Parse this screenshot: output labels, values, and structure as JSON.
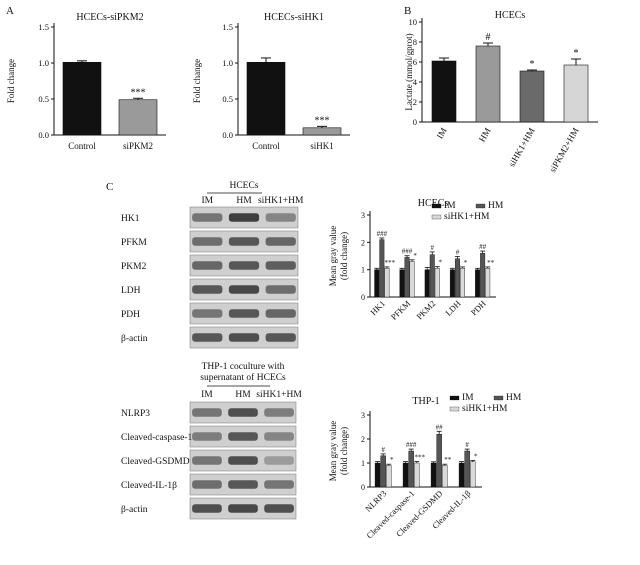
{
  "panels": {
    "A": "A",
    "B": "B",
    "C": "C"
  },
  "colors": {
    "black_bar": "#111111",
    "gray_bar": "#9a9a9a",
    "light_bar": "#d6d6d6"
  },
  "chart_data": [
    {
      "id": "a1",
      "type": "bar",
      "title": "HCECs-siPKM2",
      "ylabel": "Fold change",
      "categories": [
        "Control",
        "siPKM2"
      ],
      "values": [
        1.01,
        0.49
      ],
      "errors": [
        0.02,
        0.02
      ],
      "significance": [
        "",
        "***"
      ],
      "ylim": [
        0,
        1.5
      ],
      "yticks": [
        "0.0",
        "0.5",
        "1.0",
        "1.5"
      ],
      "bar_colors": [
        "#111111",
        "#9a9a9a"
      ]
    },
    {
      "id": "a2",
      "type": "bar",
      "title": "HCECs-siHK1",
      "ylabel": "Fold change",
      "categories": [
        "Control",
        "siHK1"
      ],
      "values": [
        1.01,
        0.1
      ],
      "errors": [
        0.06,
        0.02
      ],
      "significance": [
        "",
        "***"
      ],
      "ylim": [
        0,
        1.5
      ],
      "yticks": [
        "0.0",
        "0.5",
        "1.0",
        "1.5"
      ],
      "bar_colors": [
        "#111111",
        "#9a9a9a"
      ]
    },
    {
      "id": "b",
      "type": "bar",
      "title": "HCECs",
      "ylabel": "Lactate (mmol/gprot)",
      "categories": [
        "IM",
        "HM",
        "siHK1+HM",
        "siPKM2+HM"
      ],
      "values": [
        6.1,
        7.6,
        5.1,
        5.7
      ],
      "errors": [
        0.3,
        0.3,
        0.1,
        0.6
      ],
      "significance": [
        "",
        "#",
        "*",
        "*"
      ],
      "ylim": [
        0,
        10
      ],
      "yticks": [
        "0",
        "2",
        "4",
        "6",
        "8",
        "10"
      ],
      "bar_colors": [
        "#111111",
        "#9a9a9a",
        "#6a6a6a",
        "#d6d6d6"
      ]
    },
    {
      "id": "c1",
      "type": "bar",
      "title": "HCECs",
      "ylabel": "Mean gray value (fold change)",
      "categories": [
        "HK1",
        "PFKM",
        "PKM2",
        "LDH",
        "PDH"
      ],
      "series": [
        {
          "name": "IM",
          "values": [
            1.0,
            1.0,
            1.0,
            1.0,
            1.0
          ],
          "errors": [
            0.05,
            0.05,
            0.08,
            0.05,
            0.05
          ],
          "marks": [
            "",
            "",
            "",
            "",
            ""
          ]
        },
        {
          "name": "HM",
          "values": [
            2.1,
            1.45,
            1.55,
            1.4,
            1.6
          ],
          "errors": [
            0.06,
            0.06,
            0.1,
            0.08,
            0.08
          ],
          "marks": [
            "###",
            "###",
            "#",
            "#",
            "##"
          ]
        },
        {
          "name": "siHK1+HM",
          "values": [
            1.05,
            1.3,
            1.05,
            1.05,
            1.05
          ],
          "errors": [
            0.05,
            0.06,
            0.06,
            0.05,
            0.05
          ],
          "marks": [
            "***",
            "*",
            "*",
            "*",
            "**"
          ]
        }
      ],
      "ylim": [
        0,
        3
      ],
      "yticks": [
        "0",
        "1",
        "2",
        "3"
      ],
      "legend_position": "top-right"
    },
    {
      "id": "c2",
      "type": "bar",
      "title": "THP-1",
      "ylabel": "Mean gray value (fold change)",
      "categories": [
        "NLRP3",
        "Cleaved-caspase-1",
        "Cleaved-GSDMD",
        "Cleaved-IL-1β"
      ],
      "series": [
        {
          "name": "IM",
          "values": [
            1.0,
            1.0,
            1.0,
            1.0
          ],
          "errors": [
            0.06,
            0.06,
            0.05,
            0.06
          ],
          "marks": [
            "",
            "",
            "",
            ""
          ]
        },
        {
          "name": "HM",
          "values": [
            1.3,
            1.5,
            2.2,
            1.5
          ],
          "errors": [
            0.08,
            0.08,
            0.12,
            0.08
          ],
          "marks": [
            "#",
            "###",
            "##",
            "#"
          ]
        },
        {
          "name": "siHK1+HM",
          "values": [
            0.9,
            1.0,
            0.9,
            1.05
          ],
          "errors": [
            0.05,
            0.06,
            0.05,
            0.06
          ],
          "marks": [
            "*",
            "***",
            "**",
            "*"
          ]
        }
      ],
      "ylim": [
        0,
        3
      ],
      "yticks": [
        "0",
        "1",
        "2",
        "3"
      ],
      "legend_position": "top-right"
    }
  ],
  "blots": [
    {
      "id": "hcecs_blot",
      "group_label": "HCECs",
      "columns": [
        "IM",
        "HM",
        "siHK1+HM"
      ],
      "rows": [
        {
          "label": "HK1",
          "intensity": [
            0.55,
            0.9,
            0.45
          ]
        },
        {
          "label": "PFKM",
          "intensity": [
            0.6,
            0.75,
            0.65
          ]
        },
        {
          "label": "PKM2",
          "intensity": [
            0.65,
            0.75,
            0.7
          ]
        },
        {
          "label": "LDH",
          "intensity": [
            0.75,
            0.85,
            0.6
          ]
        },
        {
          "label": "PDH",
          "intensity": [
            0.55,
            0.75,
            0.65
          ]
        },
        {
          "label": "β-actin",
          "intensity": [
            0.75,
            0.8,
            0.75
          ]
        }
      ]
    },
    {
      "id": "thp1_blot",
      "group_label": "THP-1 coculture with supernatant of HCECs",
      "group_label_lines": [
        "THP-1 coculture with",
        "supernatant of HCECs"
      ],
      "columns": [
        "IM",
        "HM",
        "siHK1+HM"
      ],
      "rows": [
        {
          "label": "NLRP3",
          "intensity": [
            0.55,
            0.8,
            0.5
          ]
        },
        {
          "label": "Cleaved-caspase-1",
          "intensity": [
            0.5,
            0.75,
            0.45
          ]
        },
        {
          "label": "Cleaved-GSDMD",
          "intensity": [
            0.55,
            0.8,
            0.3
          ]
        },
        {
          "label": "Cleaved-IL-1β",
          "intensity": [
            0.6,
            0.75,
            0.55
          ]
        },
        {
          "label": "β-actin",
          "intensity": [
            0.8,
            0.85,
            0.8
          ]
        }
      ]
    }
  ]
}
